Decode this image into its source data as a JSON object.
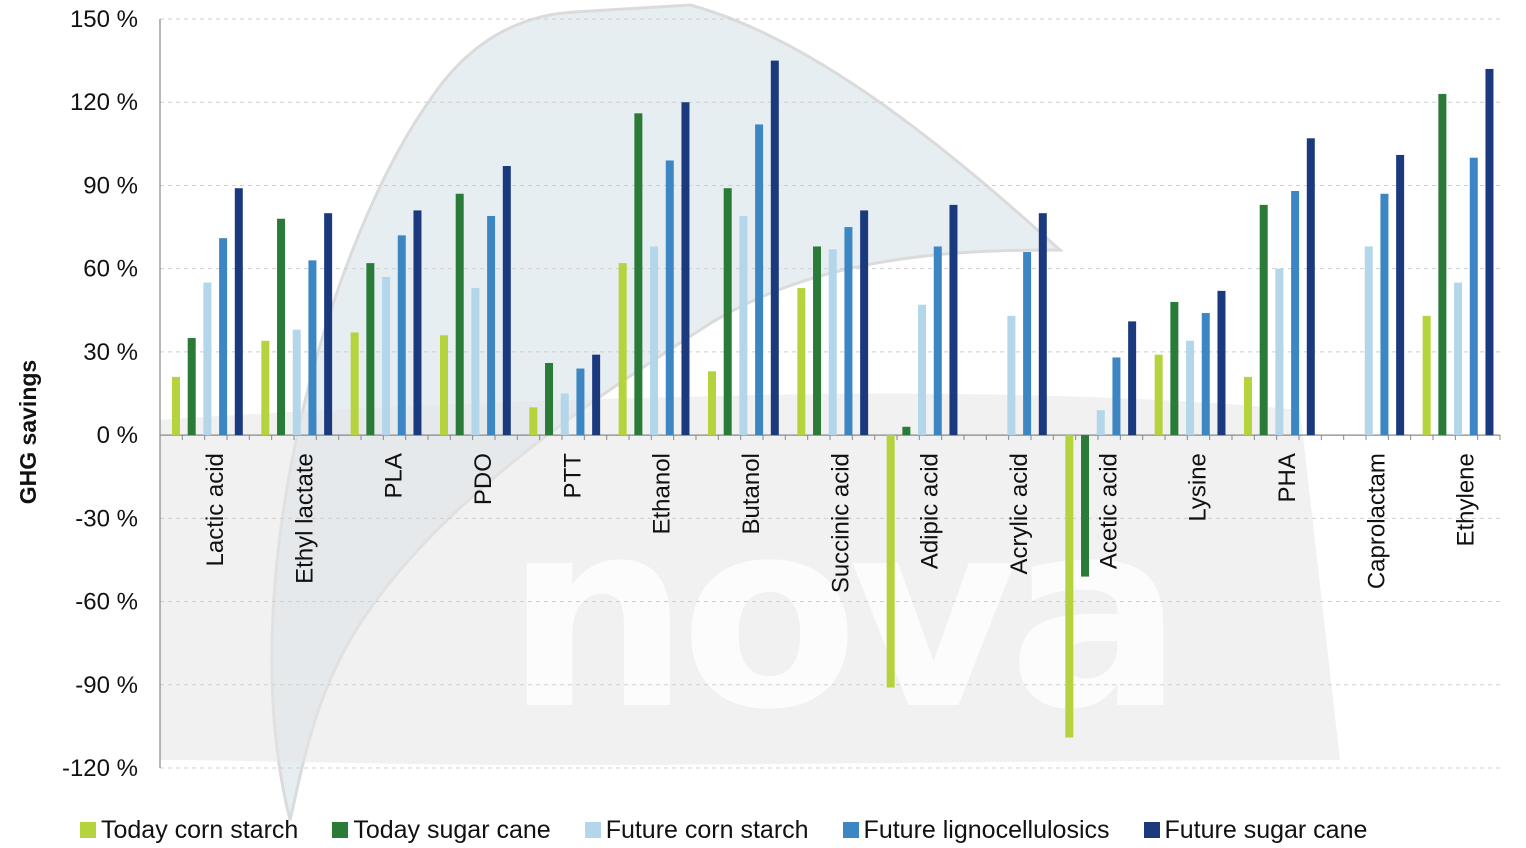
{
  "watermark": "nova",
  "chart_data": {
    "type": "bar",
    "ylabel": "GHG savings",
    "ylim": [
      -120,
      150
    ],
    "yticks": [
      150,
      120,
      90,
      60,
      30,
      0,
      -30,
      -60,
      -90,
      -120
    ],
    "ytick_labels": [
      "150 %",
      "120 %",
      "90 %",
      "60 %",
      "30 %",
      "0 %",
      "-30 %",
      "-60 %",
      "-90 %",
      "-120 %"
    ],
    "grid": "horizontal dashed",
    "legend_position": "bottom",
    "categories": [
      "Lactic acid",
      "Ethyl lactate",
      "PLA",
      "PDO",
      "PTT",
      "Ethanol",
      "Butanol",
      "Succinic acid",
      "Adipic acid",
      "Acrylic acid",
      "Acetic acid",
      "Lysine",
      "PHA",
      "Caprolactam",
      "Ethylene"
    ],
    "series": [
      {
        "name": "Today corn starch",
        "color": "#b5d33c",
        "values": [
          21,
          34,
          37,
          36,
          10,
          62,
          23,
          53,
          -91,
          null,
          -109,
          29,
          21,
          null,
          43
        ]
      },
      {
        "name": "Today sugar cane",
        "color": "#2a7a38",
        "values": [
          35,
          78,
          62,
          87,
          26,
          116,
          89,
          68,
          3,
          null,
          -51,
          48,
          83,
          null,
          123
        ]
      },
      {
        "name": "Future corn starch",
        "color": "#b3d6ea",
        "values": [
          55,
          38,
          57,
          53,
          15,
          68,
          79,
          67,
          47,
          43,
          9,
          34,
          60,
          68,
          55
        ]
      },
      {
        "name": "Future lignocellulosics",
        "color": "#3d86c4",
        "values": [
          71,
          63,
          72,
          79,
          24,
          99,
          112,
          75,
          68,
          66,
          28,
          44,
          88,
          87,
          100
        ]
      },
      {
        "name": "Future sugar cane",
        "color": "#1b3a7e",
        "values": [
          89,
          80,
          81,
          97,
          29,
          120,
          135,
          81,
          83,
          80,
          41,
          52,
          107,
          101,
          132
        ]
      }
    ]
  }
}
